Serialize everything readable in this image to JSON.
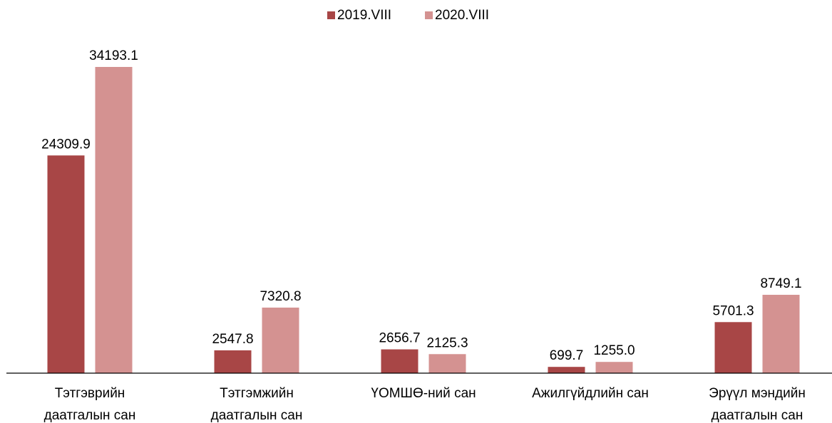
{
  "chart_data": {
    "type": "bar",
    "categories": [
      "Тэтгэврийн\nдаатгалын сан",
      "Тэтгэмжийн\nдаатгалын сан",
      "ҮОМШӨ-ний сан",
      "Ажилгүйдлийн сан",
      "Эрүүл мэндийн\nдаатгалын сан"
    ],
    "series": [
      {
        "name": "2019.VIII",
        "color": "#a84646",
        "values": [
          24309.9,
          2547.8,
          2656.7,
          699.7,
          5701.3
        ],
        "value_labels": [
          "24309.9",
          "2547.8",
          "2656.7",
          "699.7",
          "5701.3"
        ]
      },
      {
        "name": "2020.VIII",
        "color": "#d49291",
        "values": [
          34193.1,
          7320.8,
          2125.3,
          1255.0,
          8749.1
        ],
        "value_labels": [
          "34193.1",
          "7320.8",
          "2125.3",
          "1255.0",
          "8749.1"
        ]
      }
    ],
    "legend": "top"
  }
}
